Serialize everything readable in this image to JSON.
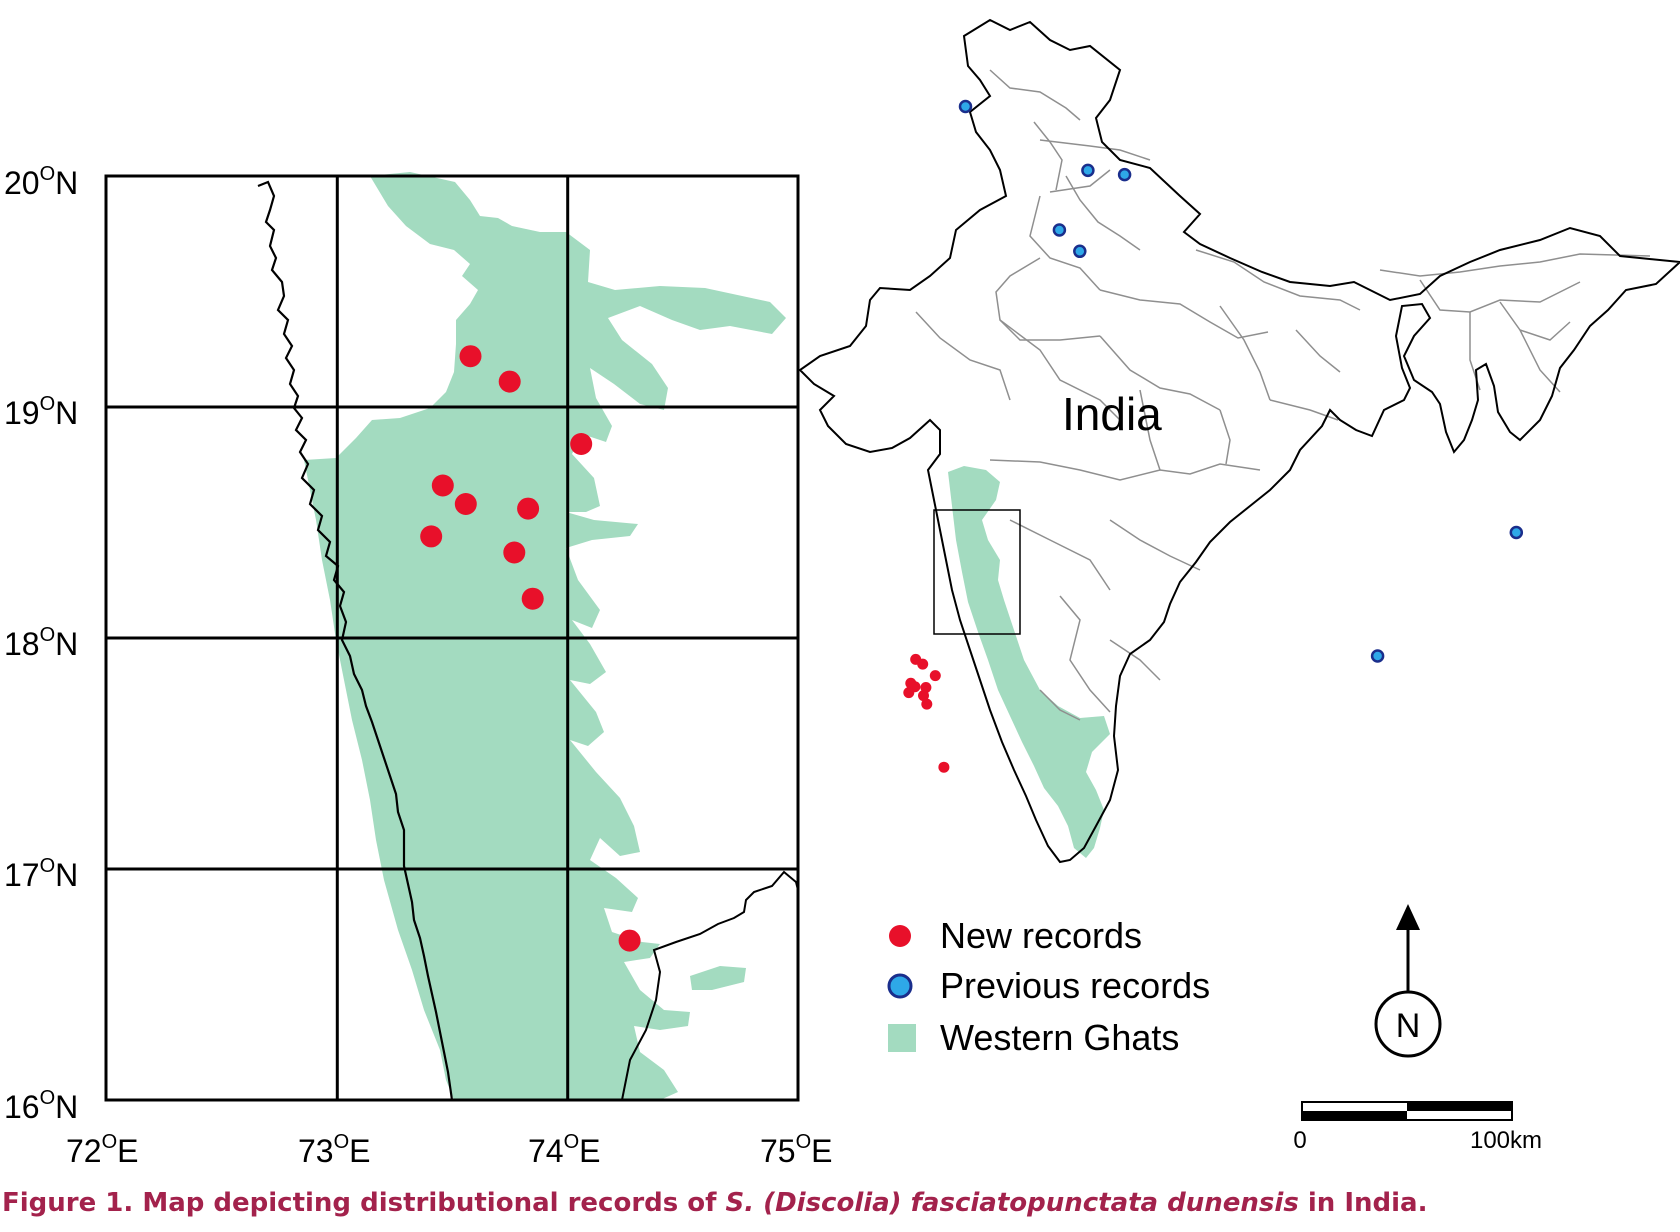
{
  "colors": {
    "new_record": "#e8102a",
    "previous_record": "#2ea8e8",
    "previous_record_outline": "#1a2e8c",
    "western_ghats": "#a3dbc0",
    "caption": "#a3224c",
    "state_boundary": "#8f8f8f",
    "coast": "#000000"
  },
  "inset_map": {
    "lat_labels": [
      "20",
      "19",
      "18",
      "17",
      "16"
    ],
    "lat_suffix": "N",
    "lon_labels": [
      "72",
      "73",
      "74",
      "75"
    ],
    "lon_suffix": "E",
    "new_records": [
      {
        "lon": 73.58,
        "lat": 19.22
      },
      {
        "lon": 73.75,
        "lat": 19.11
      },
      {
        "lon": 74.06,
        "lat": 18.84
      },
      {
        "lon": 73.46,
        "lat": 18.66
      },
      {
        "lon": 73.56,
        "lat": 18.58
      },
      {
        "lon": 73.83,
        "lat": 18.56
      },
      {
        "lon": 73.41,
        "lat": 18.44
      },
      {
        "lon": 73.77,
        "lat": 18.37
      },
      {
        "lon": 73.85,
        "lat": 18.17
      },
      {
        "lon": 74.27,
        "lat": 16.69
      }
    ]
  },
  "india_map": {
    "label": "India",
    "previous_records": [
      {
        "lon": 74.8,
        "lat": 32.2
      },
      {
        "lon": 77.8,
        "lat": 30.7
      },
      {
        "lon": 78.7,
        "lat": 30.6
      },
      {
        "lon": 77.1,
        "lat": 29.3
      },
      {
        "lon": 77.6,
        "lat": 28.8
      },
      {
        "lon": 88.3,
        "lat": 22.2
      },
      {
        "lon": 84.9,
        "lat": 19.3
      }
    ]
  },
  "legend": {
    "new": "New records",
    "previous": "Previous records",
    "ghats": "Western Ghats"
  },
  "north_arrow": "N",
  "scale_bar": {
    "left": "0",
    "right": "100km"
  },
  "caption": {
    "prefix": "Figure 1. Map depicting distributional records of ",
    "species": "S. (Discolia) fasciatopunctata dunensis",
    "suffix": " in India."
  }
}
